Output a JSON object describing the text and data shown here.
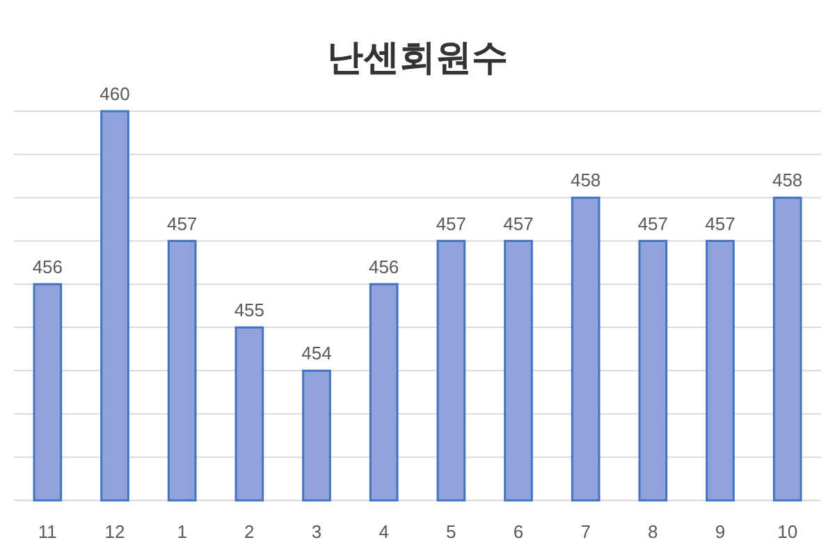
{
  "chart_data": {
    "type": "bar",
    "title": "난센회원수",
    "categories": [
      "11",
      "12",
      "1",
      "2",
      "3",
      "4",
      "5",
      "6",
      "7",
      "8",
      "9",
      "10"
    ],
    "values": [
      456,
      460,
      457,
      455,
      454,
      456,
      457,
      457,
      458,
      457,
      457,
      458
    ],
    "color": "#8fa3da",
    "ylim": [
      451,
      460
    ],
    "yticks": [
      {
        "value": 451,
        "label": null
      },
      {
        "value": 452,
        "label": null
      },
      {
        "value": 453,
        "label": null
      },
      {
        "value": 454,
        "label": null
      },
      {
        "value": 455,
        "label": null
      },
      {
        "value": 456,
        "label": null
      },
      {
        "value": 457,
        "label": null
      },
      {
        "value": 458,
        "label": null
      },
      {
        "value": 459,
        "label": null
      },
      {
        "value": 460,
        "label": null
      }
    ],
    "grid": "y",
    "data_labels": true,
    "tick_labels": "x"
  }
}
